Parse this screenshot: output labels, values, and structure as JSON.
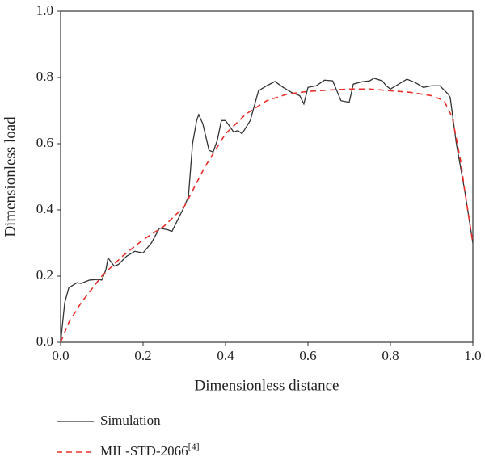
{
  "chart_data": {
    "type": "line",
    "xlabel": "Dimensionless distance",
    "ylabel": "Dimensionless load",
    "xlim": [
      0,
      1
    ],
    "ylim": [
      0,
      1
    ],
    "xticks": [
      {
        "value": 0,
        "label": "0.0"
      },
      0.2,
      0.4,
      0.6,
      0.8,
      {
        "value": 1,
        "label": "1.0"
      }
    ],
    "yticks": [
      {
        "value": 0,
        "label": "0.0"
      },
      0.2,
      0.4,
      0.6,
      0.8,
      {
        "value": 1,
        "label": "1.0"
      }
    ],
    "series": [
      {
        "name": "Simulation",
        "color": "#333333",
        "dash": false,
        "x": [
          0.0,
          0.01,
          0.02,
          0.04,
          0.05,
          0.07,
          0.09,
          0.1,
          0.11,
          0.115,
          0.13,
          0.14,
          0.16,
          0.18,
          0.2,
          0.22,
          0.24,
          0.26,
          0.27,
          0.28,
          0.3,
          0.31,
          0.315,
          0.32,
          0.33,
          0.335,
          0.345,
          0.36,
          0.37,
          0.38,
          0.39,
          0.4,
          0.42,
          0.43,
          0.44,
          0.46,
          0.48,
          0.5,
          0.52,
          0.54,
          0.56,
          0.58,
          0.59,
          0.6,
          0.62,
          0.64,
          0.66,
          0.67,
          0.68,
          0.7,
          0.71,
          0.73,
          0.75,
          0.76,
          0.78,
          0.79,
          0.8,
          0.82,
          0.84,
          0.86,
          0.88,
          0.9,
          0.92,
          0.94,
          0.945,
          0.96,
          0.98,
          1.0
        ],
        "values": [
          0.0,
          0.12,
          0.165,
          0.18,
          0.178,
          0.188,
          0.19,
          0.188,
          0.22,
          0.255,
          0.23,
          0.235,
          0.26,
          0.275,
          0.27,
          0.3,
          0.345,
          0.34,
          0.335,
          0.36,
          0.41,
          0.44,
          0.52,
          0.6,
          0.67,
          0.688,
          0.66,
          0.58,
          0.575,
          0.61,
          0.67,
          0.67,
          0.635,
          0.64,
          0.63,
          0.67,
          0.76,
          0.775,
          0.788,
          0.77,
          0.755,
          0.745,
          0.72,
          0.77,
          0.775,
          0.792,
          0.79,
          0.76,
          0.73,
          0.725,
          0.78,
          0.787,
          0.79,
          0.798,
          0.79,
          0.775,
          0.765,
          0.78,
          0.795,
          0.785,
          0.77,
          0.775,
          0.775,
          0.75,
          0.74,
          0.6,
          0.46,
          0.3
        ]
      },
      {
        "name": "MIL-STD-2066",
        "name_superscript": "[4]",
        "color": "#e8302a",
        "dash": true,
        "x": [
          0.0,
          0.02,
          0.05,
          0.1,
          0.15,
          0.2,
          0.25,
          0.3,
          0.35,
          0.4,
          0.45,
          0.5,
          0.55,
          0.6,
          0.65,
          0.7,
          0.75,
          0.8,
          0.85,
          0.9,
          0.93,
          0.95,
          0.97,
          0.98,
          1.0
        ],
        "values": [
          0.0,
          0.06,
          0.12,
          0.2,
          0.26,
          0.31,
          0.35,
          0.41,
          0.53,
          0.63,
          0.69,
          0.73,
          0.75,
          0.758,
          0.762,
          0.765,
          0.765,
          0.76,
          0.755,
          0.745,
          0.73,
          0.68,
          0.55,
          0.46,
          0.3
        ]
      }
    ]
  }
}
